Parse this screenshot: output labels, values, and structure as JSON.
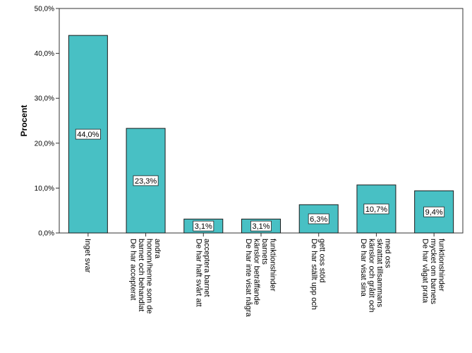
{
  "chart_data": {
    "type": "bar",
    "title": "",
    "xlabel": "",
    "ylabel": "Procent",
    "ylim": [
      0,
      50
    ],
    "yticks": [
      "0,0%",
      "10,0%",
      "20,0%",
      "30,0%",
      "40,0%",
      "50,0%"
    ],
    "grid": false,
    "categories": [
      "Inget svar",
      "De har accepterat barnet och behandlat honom/henne som de andra",
      "De har haft svårt att acceptera barnet",
      "De har inte visat några känslor beträffande barnets funktionshinder",
      "De har ställt upp och gett oss stöd",
      "De har visat sina känslor och gråtit och skrattat tillsammans med oss",
      "De har vågat prata mycket om barnets funktionshinder"
    ],
    "category_label_lines": [
      [
        "Inget svar"
      ],
      [
        "De har accepterat",
        "barnet och behandlat",
        "honom/henne som de",
        "andra"
      ],
      [
        "De har haft svårt att",
        "acceptera barnet"
      ],
      [
        "De har inte visat några",
        "känslor beträffande",
        "barnets",
        "funktionshinder"
      ],
      [
        "De har ställt upp och",
        "gett oss stöd"
      ],
      [
        "De har visat sina",
        "känslor och gråtit och",
        "skrattat tillsammans",
        "med oss"
      ],
      [
        "De har vågat prata",
        "mycket om barnets",
        "funktionshinder"
      ]
    ],
    "values": [
      44.0,
      23.3,
      3.1,
      3.1,
      6.3,
      10.7,
      9.4
    ],
    "data_labels": [
      "44,0%",
      "23,3%",
      "3,1%",
      "3,1%",
      "6,3%",
      "10,7%",
      "9,4%"
    ],
    "bar_color": "#48c0c4",
    "bar_stroke": "#1a1a1a"
  }
}
